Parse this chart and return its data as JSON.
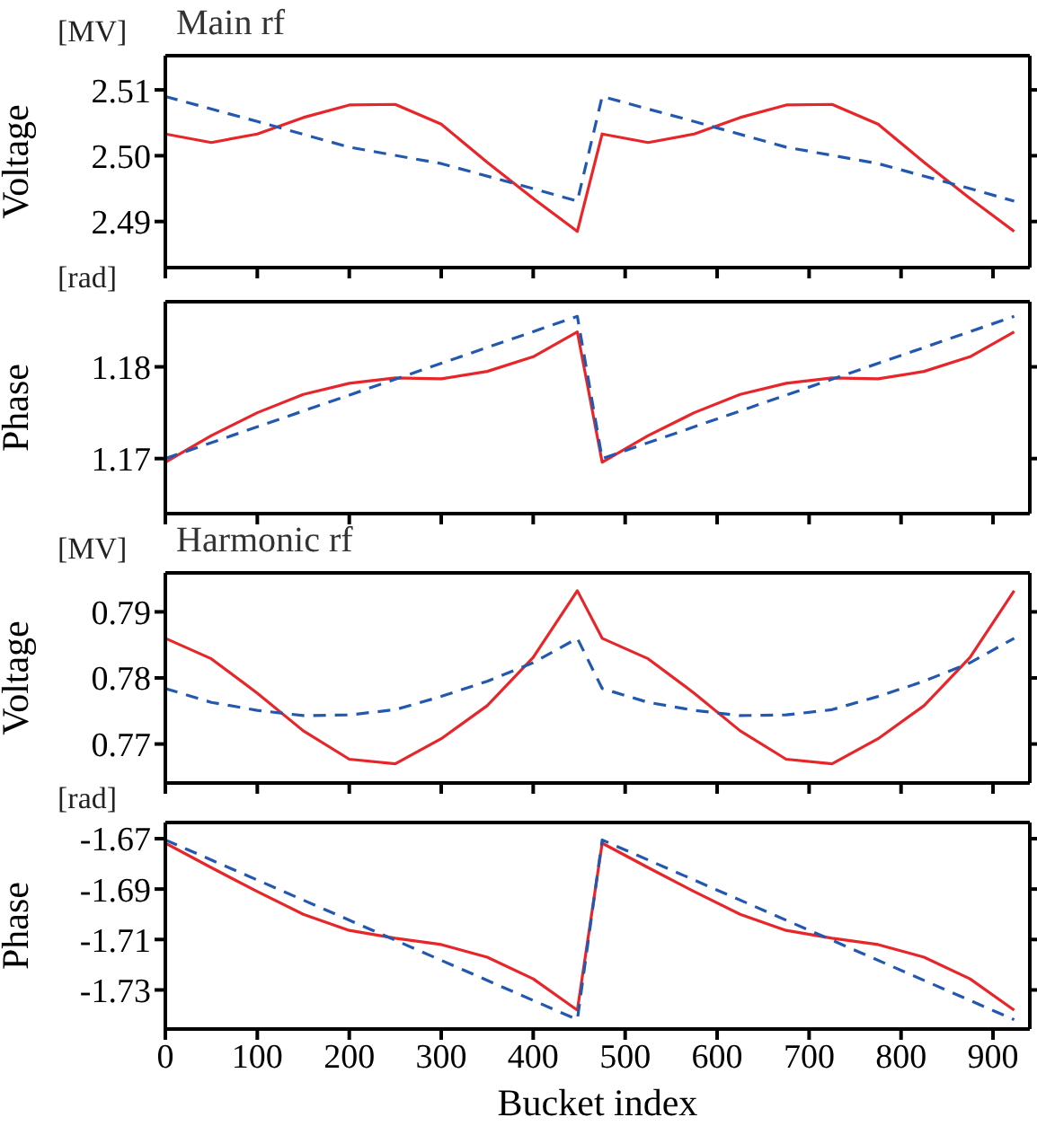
{
  "chart_data": [
    {
      "type": "line",
      "title": "Main rf",
      "ylabel": "Voltage",
      "annotations": [
        "[MV]"
      ],
      "xlim": [
        0,
        940
      ],
      "xticks": [
        0,
        100,
        200,
        300,
        400,
        500,
        600,
        700,
        800,
        900
      ],
      "ylim": [
        2.483,
        2.5152
      ],
      "yticks": [
        2.49,
        {
          "value": 2.5,
          "label": "2.50"
        },
        2.51
      ],
      "tick_labels": "y",
      "grid": false,
      "legend": false,
      "marker": "none",
      "series": [
        {
          "color": "#e8262a",
          "line_style": "solid",
          "x": [
            0,
            50,
            100,
            150,
            200,
            250,
            300,
            350,
            400,
            448,
            475,
            525,
            575,
            625,
            675,
            725,
            775,
            825,
            875,
            923
          ],
          "values": [
            2.5033,
            2.502,
            2.5033,
            2.5058,
            2.5077,
            2.5078,
            2.5048,
            2.499,
            2.4935,
            2.4885,
            2.5033,
            2.502,
            2.5033,
            2.5058,
            2.5077,
            2.5078,
            2.5048,
            2.499,
            2.4935,
            2.4885
          ]
        },
        {
          "color": "#2358b0",
          "line_style": "dashed",
          "x": [
            0,
            100,
            200,
            300,
            400,
            448,
            475,
            575,
            675,
            775,
            875,
            923
          ],
          "values": [
            2.509,
            2.5052,
            2.5013,
            2.4988,
            2.495,
            2.4931,
            2.509,
            2.5052,
            2.5013,
            2.4988,
            2.495,
            2.4931
          ]
        }
      ]
    },
    {
      "type": "line",
      "ylabel": "Phase",
      "annotations": [
        "[rad]"
      ],
      "xlim": [
        0,
        940
      ],
      "xticks": [
        0,
        100,
        200,
        300,
        400,
        500,
        600,
        700,
        800,
        900
      ],
      "ylim": [
        1.164,
        1.1871
      ],
      "yticks": [
        1.17,
        1.18
      ],
      "tick_labels": "y",
      "grid": false,
      "legend": false,
      "marker": "none",
      "series": [
        {
          "color": "#e8262a",
          "line_style": "solid",
          "x": [
            0,
            50,
            100,
            150,
            200,
            250,
            300,
            350,
            400,
            448,
            475,
            525,
            575,
            625,
            675,
            725,
            775,
            825,
            875,
            923
          ],
          "values": [
            1.1696,
            1.1725,
            1.175,
            1.177,
            1.1782,
            1.1788,
            1.1787,
            1.1795,
            1.1811,
            1.1838,
            1.1696,
            1.1725,
            1.175,
            1.177,
            1.1782,
            1.1788,
            1.1787,
            1.1795,
            1.1811,
            1.1838
          ]
        },
        {
          "color": "#2358b0",
          "line_style": "dashed",
          "x": [
            0,
            448,
            475,
            923
          ],
          "values": [
            1.17,
            1.1855,
            1.17,
            1.1855
          ]
        }
      ]
    },
    {
      "type": "line",
      "title": "Harmonic rf",
      "ylabel": "Voltage",
      "annotations": [
        "[MV]"
      ],
      "xlim": [
        0,
        940
      ],
      "xticks": [
        0,
        100,
        200,
        300,
        400,
        500,
        600,
        700,
        800,
        900
      ],
      "ylim": [
        0.7641,
        0.7959
      ],
      "yticks": [
        0.77,
        0.78,
        0.79
      ],
      "tick_labels": "y",
      "grid": false,
      "legend": false,
      "marker": "none",
      "series": [
        {
          "color": "#e8262a",
          "line_style": "solid",
          "x": [
            0,
            50,
            100,
            150,
            200,
            250,
            300,
            350,
            400,
            448,
            475,
            525,
            575,
            625,
            675,
            725,
            775,
            825,
            875,
            923
          ],
          "values": [
            0.786,
            0.7829,
            0.7777,
            0.772,
            0.7677,
            0.767,
            0.7708,
            0.7758,
            0.7831,
            0.7932,
            0.786,
            0.7829,
            0.7777,
            0.772,
            0.7677,
            0.767,
            0.7708,
            0.7758,
            0.7831,
            0.7932
          ]
        },
        {
          "color": "#2358b0",
          "line_style": "dashed",
          "x": [
            0,
            50,
            100,
            150,
            200,
            250,
            300,
            350,
            400,
            448,
            475,
            525,
            575,
            625,
            675,
            725,
            775,
            825,
            875,
            923
          ],
          "values": [
            0.7784,
            0.7763,
            0.7751,
            0.7743,
            0.7744,
            0.7752,
            0.7772,
            0.7795,
            0.7823,
            0.786,
            0.7784,
            0.7763,
            0.7751,
            0.7743,
            0.7744,
            0.7752,
            0.7772,
            0.7795,
            0.7823,
            0.786
          ]
        }
      ]
    },
    {
      "type": "line",
      "xlabel": "Bucket index",
      "ylabel": "Phase",
      "annotations": [
        "[rad]"
      ],
      "xlim": [
        0,
        940
      ],
      "xticks": [
        0,
        100,
        200,
        300,
        400,
        500,
        600,
        700,
        800,
        900
      ],
      "ylim": [
        -1.7455,
        -1.6636
      ],
      "yticks": [
        -1.73,
        -1.71,
        -1.69,
        -1.67
      ],
      "grid": false,
      "legend": false,
      "marker": "none",
      "series": [
        {
          "color": "#e8262a",
          "line_style": "solid",
          "x": [
            0,
            50,
            100,
            150,
            200,
            250,
            300,
            350,
            400,
            448,
            475,
            525,
            575,
            625,
            675,
            725,
            775,
            825,
            875,
            923
          ],
          "values": [
            -1.6718,
            -1.6815,
            -1.691,
            -1.7,
            -1.7064,
            -1.7095,
            -1.712,
            -1.717,
            -1.7256,
            -1.738,
            -1.6718,
            -1.6815,
            -1.691,
            -1.7,
            -1.7064,
            -1.7095,
            -1.712,
            -1.717,
            -1.7256,
            -1.738
          ]
        },
        {
          "color": "#2358b0",
          "line_style": "dashed",
          "x": [
            0,
            448,
            475,
            923
          ],
          "values": [
            -1.6705,
            -1.7418,
            -1.6705,
            -1.7418
          ]
        }
      ]
    }
  ]
}
